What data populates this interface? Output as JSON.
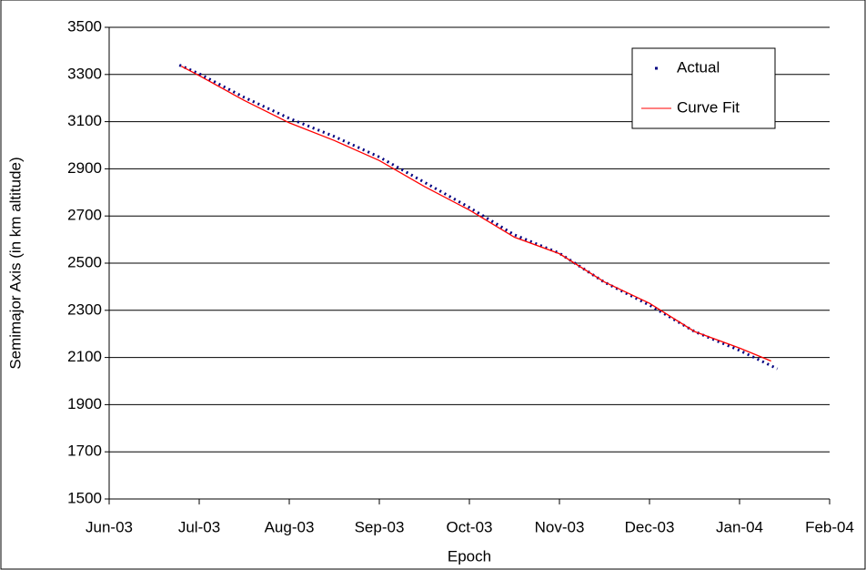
{
  "chart_data": {
    "type": "line",
    "xlabel": "Epoch",
    "ylabel": "Semimajor Axis (in km altitude)",
    "xlim": [
      0,
      8
    ],
    "ylim": [
      1500,
      3500
    ],
    "xticks": [
      {
        "value": 0,
        "label": "Jun-03"
      },
      {
        "value": 1,
        "label": "Jul-03"
      },
      {
        "value": 2,
        "label": "Aug-03"
      },
      {
        "value": 3,
        "label": "Sep-03"
      },
      {
        "value": 4,
        "label": "Oct-03"
      },
      {
        "value": 5,
        "label": "Nov-03"
      },
      {
        "value": 6,
        "label": "Dec-03"
      },
      {
        "value": 7,
        "label": "Jan-04"
      },
      {
        "value": 8,
        "label": "Feb-04"
      }
    ],
    "yticks": [
      1500,
      1700,
      1900,
      2100,
      2300,
      2500,
      2700,
      2900,
      3100,
      3300,
      3500
    ],
    "grid": true,
    "legend": "upper right",
    "series": [
      {
        "name": "Actual",
        "color": "#000080",
        "style": "dotted",
        "x": [
          0.78,
          1.0,
          1.5,
          2.0,
          2.5,
          3.0,
          3.5,
          4.0,
          4.5,
          5.0,
          5.5,
          6.0,
          6.5,
          7.0,
          7.42
        ],
        "values": [
          3340,
          3303,
          3203,
          3114,
          3037,
          2950,
          2843,
          2736,
          2620,
          2542,
          2419,
          2322,
          2210,
          2130,
          2052
        ]
      },
      {
        "name": "Curve Fit",
        "color": "#ff0000",
        "style": "solid",
        "x": [
          0.8,
          1.0,
          1.5,
          2.0,
          2.5,
          3.0,
          3.5,
          4.0,
          4.5,
          5.0,
          5.5,
          6.0,
          6.5,
          7.0,
          7.35
        ],
        "values": [
          3335,
          3295,
          3190,
          3095,
          3020,
          2935,
          2825,
          2725,
          2610,
          2540,
          2420,
          2330,
          2210,
          2140,
          2085
        ]
      }
    ]
  }
}
